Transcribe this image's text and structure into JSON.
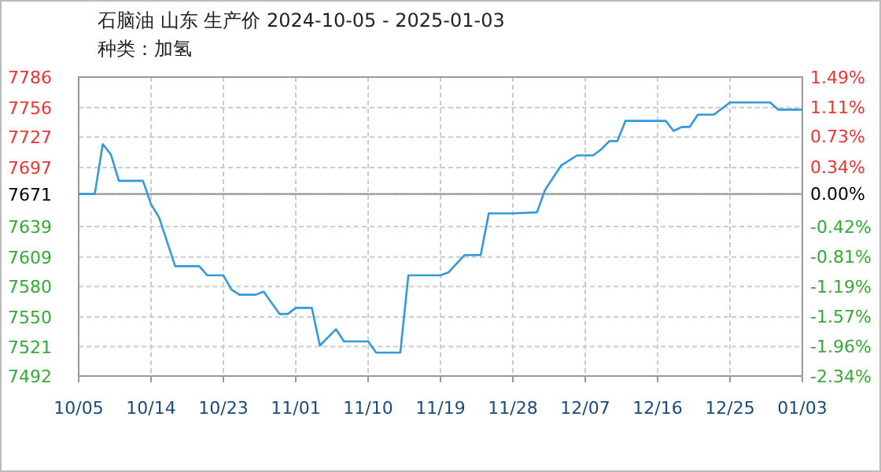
{
  "chart_data": {
    "type": "line",
    "title": "石脑油 山东 生产价 2024-10-05 - 2025-01-03",
    "subtitle": "种类：加氢",
    "x": [
      "2024-10-05",
      "2024-10-07",
      "2024-10-08",
      "2024-10-09",
      "2024-10-10",
      "2024-10-13",
      "2024-10-14",
      "2024-10-15",
      "2024-10-17",
      "2024-10-20",
      "2024-10-21",
      "2024-10-23",
      "2024-10-24",
      "2024-10-25",
      "2024-10-27",
      "2024-10-28",
      "2024-10-30",
      "2024-10-31",
      "2024-11-01",
      "2024-11-03",
      "2024-11-04",
      "2024-11-06",
      "2024-11-07",
      "2024-11-10",
      "2024-11-11",
      "2024-11-14",
      "2024-11-15",
      "2024-11-19",
      "2024-11-20",
      "2024-11-22",
      "2024-11-24",
      "2024-11-25",
      "2024-11-28",
      "2024-12-01",
      "2024-12-02",
      "2024-12-04",
      "2024-12-06",
      "2024-12-08",
      "2024-12-09",
      "2024-12-10",
      "2024-12-11",
      "2024-12-12",
      "2024-12-17",
      "2024-12-18",
      "2024-12-19",
      "2024-12-20",
      "2024-12-21",
      "2024-12-23",
      "2024-12-25",
      "2024-12-30",
      "2024-12-31",
      "2025-01-03"
    ],
    "series": [
      {
        "color": "#3399dd",
        "values": [
          7671,
          7671,
          7720,
          7710,
          7684,
          7684,
          7661,
          7648,
          7600,
          7600,
          7591,
          7591,
          7577,
          7572,
          7572,
          7575,
          7553,
          7553,
          7559,
          7559,
          7522,
          7538,
          7526,
          7526,
          7515,
          7515,
          7591,
          7591,
          7594,
          7611,
          7611,
          7652,
          7652,
          7653,
          7675,
          7699,
          7709,
          7709,
          7715,
          7723,
          7723,
          7743,
          7743,
          7733,
          7737,
          7737,
          7749,
          7749,
          7761,
          7761,
          7754,
          7754
        ]
      }
    ],
    "xlim": [
      "2024-10-05",
      "2025-01-03"
    ],
    "xticks": [
      {
        "value": "2024-10-05",
        "label": "10/05"
      },
      {
        "value": "2024-10-14",
        "label": "10/14"
      },
      {
        "value": "2024-10-23",
        "label": "10/23"
      },
      {
        "value": "2024-11-01",
        "label": "11/01"
      },
      {
        "value": "2024-11-10",
        "label": "11/10"
      },
      {
        "value": "2024-11-19",
        "label": "11/19"
      },
      {
        "value": "2024-11-28",
        "label": "11/28"
      },
      {
        "value": "2024-12-07",
        "label": "12/07"
      },
      {
        "value": "2024-12-16",
        "label": "12/16"
      },
      {
        "value": "2024-12-25",
        "label": "12/25"
      },
      {
        "value": "2025-01-03",
        "label": "01/03"
      }
    ],
    "ylim": [
      7492,
      7786
    ],
    "yticks": [
      7492,
      7521,
      7550,
      7580,
      7609,
      7639,
      7671,
      7697,
      7727,
      7756,
      7786
    ],
    "y2lim": [
      -2.34,
      1.49
    ],
    "y2ticks": [
      {
        "value": -2.34,
        "label": "-2.34%"
      },
      {
        "value": -1.96,
        "label": "-1.96%"
      },
      {
        "value": -1.57,
        "label": "-1.57%"
      },
      {
        "value": -1.19,
        "label": "-1.19%"
      },
      {
        "value": -0.81,
        "label": "-0.81%"
      },
      {
        "value": -0.42,
        "label": "-0.42%"
      },
      {
        "value": 0,
        "label": "0.00%"
      },
      {
        "value": 0.34,
        "label": "0.34%"
      },
      {
        "value": 0.73,
        "label": "0.73%"
      },
      {
        "value": 1.11,
        "label": "1.11%"
      },
      {
        "value": 1.49,
        "label": "1.49%"
      }
    ],
    "ref_lines": [
      {
        "axis": "y",
        "value": 7671,
        "color": "#999999"
      }
    ],
    "grid": true,
    "marker": "none",
    "line_style": "solid"
  }
}
